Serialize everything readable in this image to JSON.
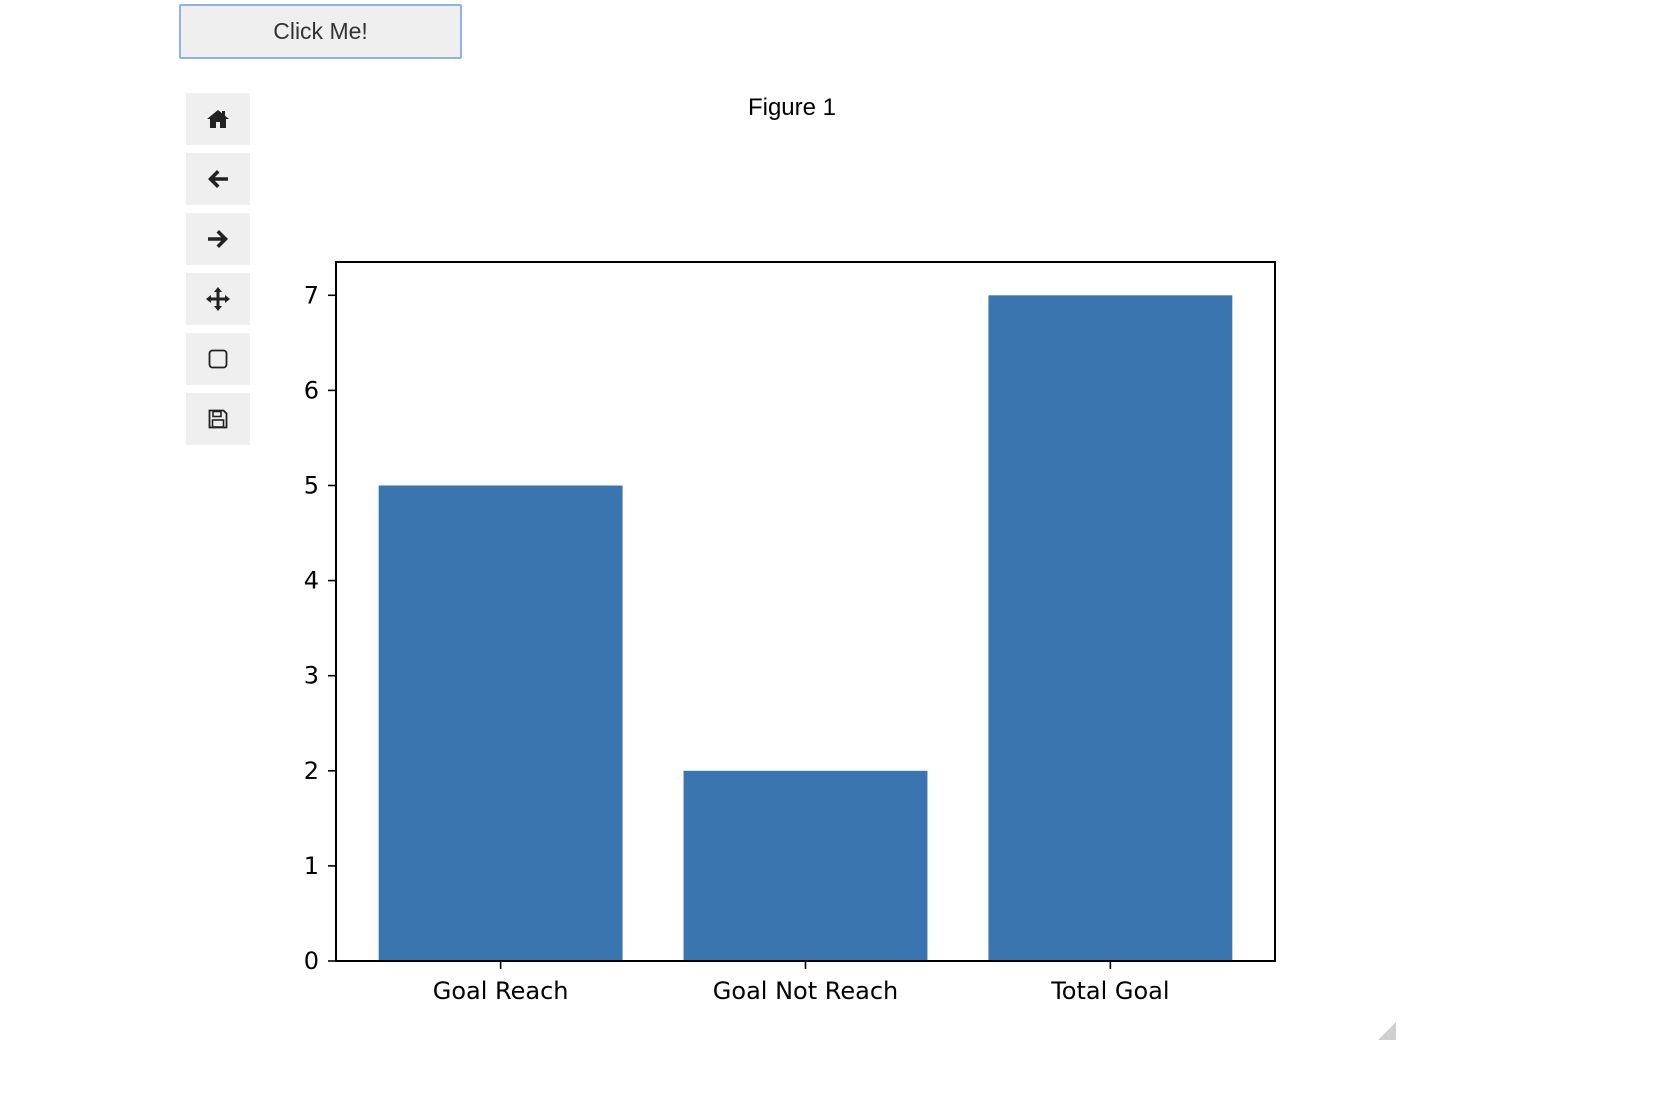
{
  "button": {
    "label": "Click Me!"
  },
  "toolbar": {
    "items": [
      {
        "name": "home",
        "icon": "home-icon"
      },
      {
        "name": "back",
        "icon": "arrow-left-icon"
      },
      {
        "name": "forward",
        "icon": "arrow-right-icon"
      },
      {
        "name": "pan",
        "icon": "move-icon"
      },
      {
        "name": "zoom",
        "icon": "square-icon"
      },
      {
        "name": "save",
        "icon": "floppy-disk-icon"
      }
    ]
  },
  "figure": {
    "title": "Figure 1"
  },
  "chart_data": {
    "type": "bar",
    "categories": [
      "Goal Reach",
      "Goal Not Reach",
      "Total Goal"
    ],
    "values": [
      5,
      2,
      7
    ],
    "yticks": [
      0,
      1,
      2,
      3,
      4,
      5,
      6,
      7
    ],
    "ylim": [
      0,
      7.35
    ],
    "bar_color": "#3a75af",
    "grid": false
  }
}
